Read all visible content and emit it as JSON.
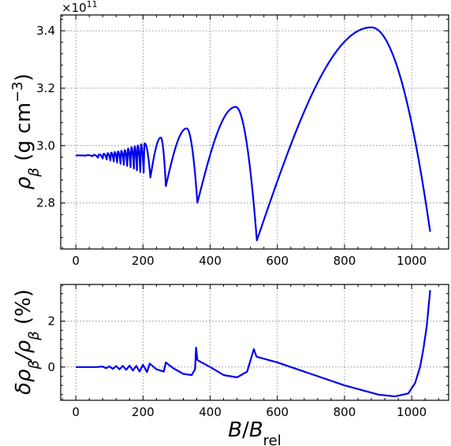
{
  "chart_data": [
    {
      "type": "line",
      "ylabel": "ρ_β (g cm^-3)",
      "ylabel_main": "ρ",
      "ylabel_sub": "β",
      "ylabel_rest": " (g cm",
      "ylabel_sup": "−3",
      "ylabel_close": ")",
      "offset_text_base": "×10",
      "offset_text_exp": "11",
      "xlim": [
        -45,
        1110
      ],
      "ylim": [
        2.64,
        3.455
      ],
      "xticks": [
        0,
        200,
        400,
        600,
        800,
        1000
      ],
      "xtick_labels": [
        "0",
        "200",
        "400",
        "600",
        "800",
        "1000"
      ],
      "yticks": [
        2.8,
        3.0,
        3.2,
        3.4
      ],
      "ytick_labels": [
        "2.8",
        "3.0",
        "3.2",
        "3.4"
      ],
      "grid": true,
      "series": [
        {
          "color": "#0000ee",
          "envelope": [
            [
              0,
              2.965,
              2.965
            ],
            [
              35,
              2.966,
              2.961
            ],
            [
              60,
              2.968,
              2.955
            ],
            [
              80,
              2.972,
              2.949
            ],
            [
              100,
              2.975,
              2.944
            ],
            [
              115,
              2.978,
              2.938
            ],
            [
              130,
              2.982,
              2.933
            ],
            [
              145,
              2.986,
              2.926
            ],
            [
              163,
              2.997,
              2.918
            ],
            [
              182,
              3.001,
              2.906
            ],
            [
              202,
              3.007,
              2.908
            ],
            [
              222,
              3.012,
              2.889
            ],
            [
              268,
              3.028,
              2.859
            ],
            [
              300,
              3.028,
              2.859
            ],
            [
              362,
              3.06,
              2.801
            ],
            [
              420,
              3.06,
              2.801
            ],
            [
              539,
              3.135,
              2.67
            ],
            [
              640,
              3.135,
              2.67
            ],
            [
              1055,
              3.412,
              2.7
            ]
          ],
          "segments": [
            [
              [
                0,
                2.965
              ],
              [
                1,
                2.965
              ]
            ]
          ],
          "arcs": [
            {
              "x0": 202,
              "x1": 222,
              "xp": 205,
              "peak": 3.008,
              "start": 2.906,
              "end": 2.889
            },
            {
              "x0": 222,
              "x1": 268,
              "xp": 253,
              "peak": 3.028,
              "start": 2.889,
              "end": 2.859
            },
            {
              "x0": 268,
              "x1": 362,
              "xp": 330,
              "peak": 3.06,
              "start": 2.859,
              "end": 2.801
            },
            {
              "x0": 362,
              "x1": 539,
              "xp": 476,
              "peak": 3.135,
              "start": 2.801,
              "end": 2.67
            },
            {
              "x0": 539,
              "x1": 1055,
              "xp": 880,
              "peak": 3.412,
              "start": 2.67,
              "end": 2.7
            }
          ],
          "small_osc": {
            "x_start": 0,
            "x_end": 202,
            "nodes": [
              0,
              30,
              50,
              66,
              80,
              92,
              103,
              113,
              123,
              133,
              143,
              153,
              163,
              173,
              182,
              192,
              202
            ],
            "peak": [
              2.966,
              2.967,
              2.968,
              2.97,
              2.972,
              2.974,
              2.976,
              2.978,
              2.98,
              2.982,
              2.985,
              2.99,
              2.995,
              2.998,
              3.001,
              3.005
            ],
            "trough": [
              2.965,
              2.963,
              2.958,
              2.955,
              2.952,
              2.948,
              2.945,
              2.941,
              2.937,
              2.933,
              2.929,
              2.925,
              2.92,
              2.914,
              2.908,
              2.906
            ]
          }
        }
      ]
    },
    {
      "type": "line",
      "xlabel": "B/B_rel",
      "xlabel_B1": "B",
      "xlabel_slash": "/",
      "xlabel_B2": "B",
      "xlabel_sub": "rel",
      "ylabel": "δρ_β/ρ_β (%)",
      "ylabel_delta": "δρ",
      "ylabel_sub1": "β",
      "ylabel_slash_rho": "/ρ",
      "ylabel_sub2": "β",
      "ylabel_rest": " (%)",
      "xlim": [
        -45,
        1110
      ],
      "ylim": [
        -1.45,
        3.6
      ],
      "xticks": [
        0,
        200,
        400,
        600,
        800,
        1000
      ],
      "xtick_labels": [
        "0",
        "200",
        "400",
        "600",
        "800",
        "1000"
      ],
      "yticks": [
        0,
        2
      ],
      "ytick_labels": [
        "0",
        "2"
      ],
      "grid": true,
      "series": [
        {
          "color": "#0000ee",
          "points": [
            [
              0,
              0
            ],
            [
              60,
              0.0
            ],
            [
              80,
              0.02
            ],
            [
              90,
              -0.05
            ],
            [
              100,
              0.03
            ],
            [
              110,
              -0.08
            ],
            [
              120,
              0.04
            ],
            [
              130,
              -0.1
            ],
            [
              140,
              0.05
            ],
            [
              150,
              -0.12
            ],
            [
              160,
              0.06
            ],
            [
              170,
              -0.15
            ],
            [
              180,
              0.05
            ],
            [
              190,
              -0.2
            ],
            [
              200,
              0.1
            ],
            [
              212,
              -0.22
            ],
            [
              220,
              0.15
            ],
            [
              240,
              -0.1
            ],
            [
              262,
              -0.2
            ],
            [
              268,
              0.2
            ],
            [
              290,
              -0.05
            ],
            [
              320,
              -0.3
            ],
            [
              345,
              -0.35
            ],
            [
              355,
              -0.1
            ],
            [
              358,
              0.85
            ],
            [
              362,
              0.3
            ],
            [
              400,
              0.0
            ],
            [
              440,
              -0.35
            ],
            [
              480,
              -0.45
            ],
            [
              510,
              -0.2
            ],
            [
              530,
              0.78
            ],
            [
              538,
              0.45
            ],
            [
              600,
              0.2
            ],
            [
              700,
              -0.3
            ],
            [
              800,
              -0.8
            ],
            [
              900,
              -1.2
            ],
            [
              950,
              -1.28
            ],
            [
              990,
              -1.15
            ],
            [
              1010,
              -0.7
            ],
            [
              1025,
              0.0
            ],
            [
              1035,
              0.8
            ],
            [
              1045,
              1.8
            ],
            [
              1055,
              3.35
            ]
          ]
        }
      ]
    }
  ]
}
